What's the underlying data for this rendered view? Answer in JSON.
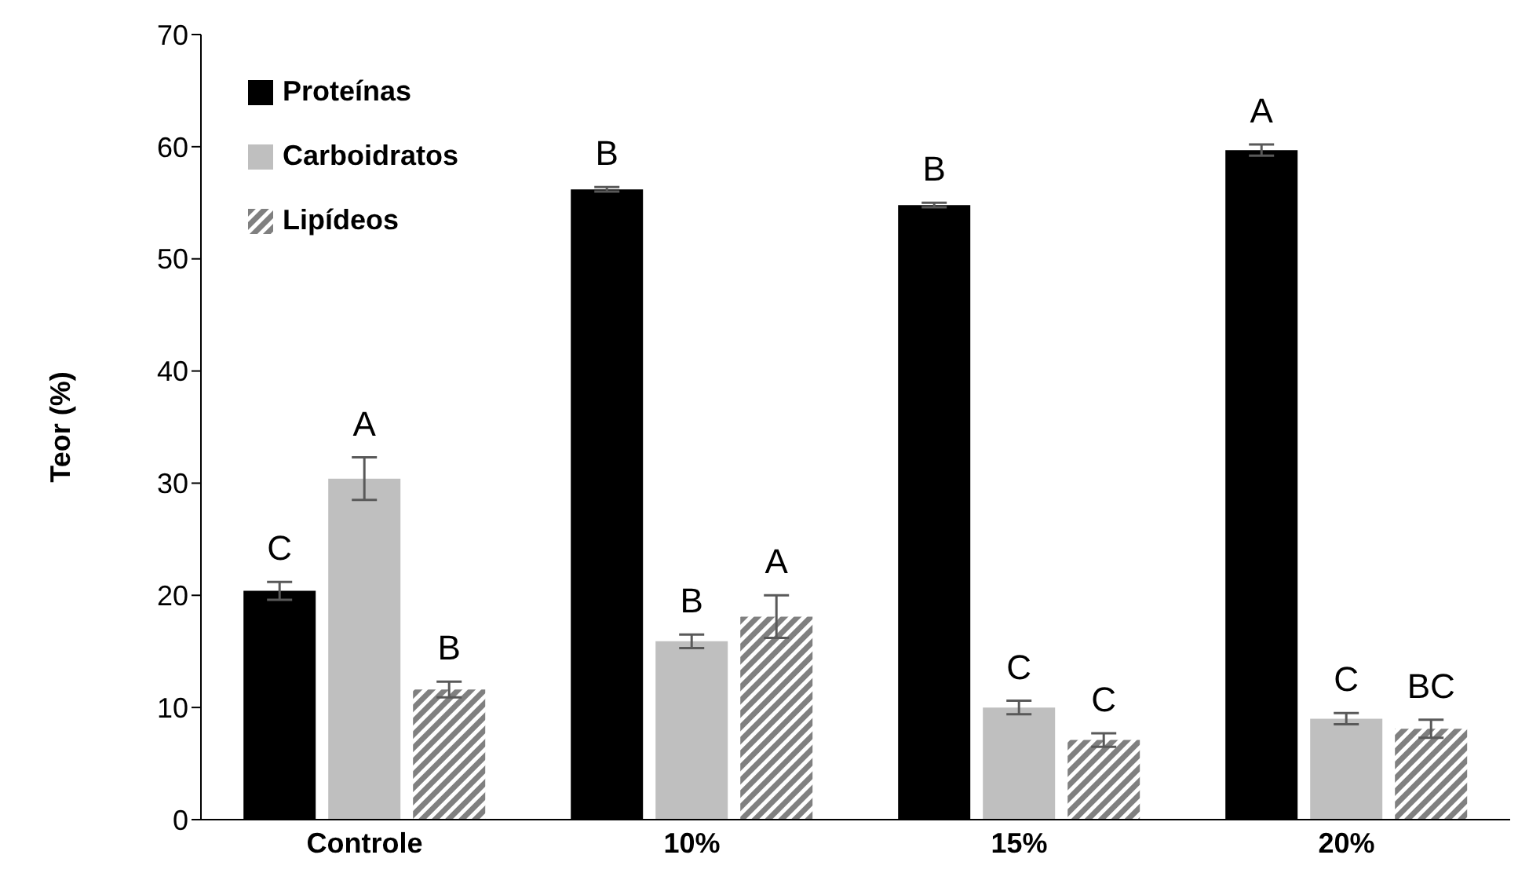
{
  "chart_data": {
    "type": "bar",
    "ylabel": "Teor (%)",
    "categories": [
      "Controle",
      "10%",
      "15%",
      "20%"
    ],
    "series": [
      {
        "name": "Proteínas",
        "color": "#000000",
        "values": [
          20.4,
          56.2,
          54.8,
          59.7
        ],
        "errors": [
          0.8,
          0.2,
          0.2,
          0.5
        ],
        "value_labels": [
          "C",
          "B",
          "B",
          "A"
        ]
      },
      {
        "name": "Carboidratos",
        "color": "#bfbfbf",
        "values": [
          30.4,
          15.9,
          10.0,
          9.0
        ],
        "errors": [
          1.9,
          0.6,
          0.6,
          0.5
        ],
        "value_labels": [
          "A",
          "B",
          "C",
          "C"
        ]
      },
      {
        "name": "Lipídeos",
        "color": "#808080",
        "values": [
          11.6,
          18.1,
          7.1,
          8.1
        ],
        "errors": [
          0.7,
          1.9,
          0.6,
          0.8
        ],
        "value_labels": [
          "B",
          "A",
          "C",
          "BC"
        ]
      }
    ],
    "ylim": [
      0,
      70
    ],
    "yticks": [
      0,
      10,
      20,
      30,
      40,
      50,
      60,
      70
    ],
    "grid": false,
    "legend": "top left"
  }
}
